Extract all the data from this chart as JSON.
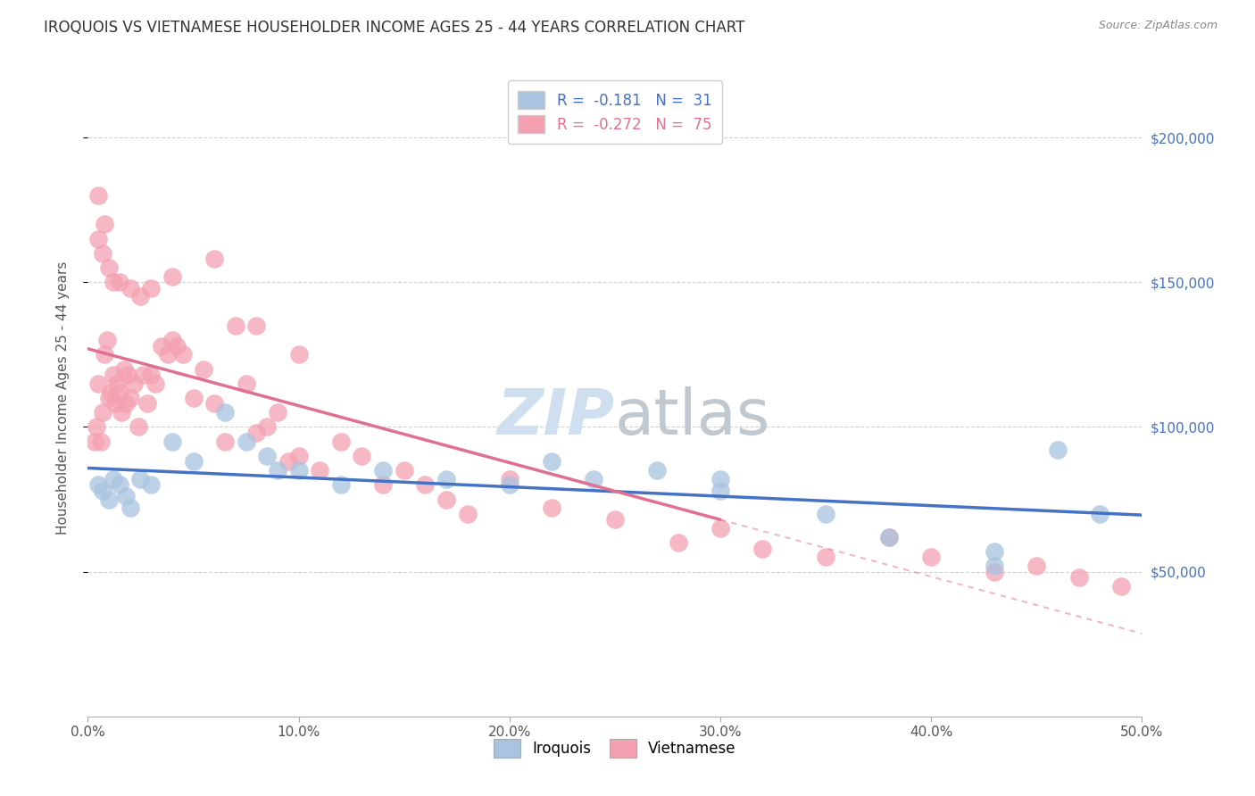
{
  "title": "IROQUOIS VS VIETNAMESE HOUSEHOLDER INCOME AGES 25 - 44 YEARS CORRELATION CHART",
  "source": "Source: ZipAtlas.com",
  "ylabel": "Householder Income Ages 25 - 44 years",
  "xlabel_ticks": [
    "0.0%",
    "10.0%",
    "20.0%",
    "30.0%",
    "40.0%",
    "50.0%"
  ],
  "xlabel_vals": [
    0.0,
    0.1,
    0.2,
    0.3,
    0.4,
    0.5
  ],
  "ylabel_ticks": [
    "$50,000",
    "$100,000",
    "$150,000",
    "$200,000"
  ],
  "ylabel_vals": [
    50000,
    100000,
    150000,
    200000
  ],
  "xlim": [
    0.0,
    0.5
  ],
  "ylim": [
    0,
    220000
  ],
  "iroquois_r": -0.181,
  "iroquois_n": 31,
  "vietnamese_r": -0.272,
  "vietnamese_n": 75,
  "color_iroquois": "#a8c4e0",
  "color_vietnamese": "#f4a0b0",
  "color_iroquois_line": "#4472c4",
  "color_vietnamese_line": "#e07090",
  "color_watermark": "#d0dff0",
  "iroquois_x": [
    0.005,
    0.007,
    0.01,
    0.012,
    0.015,
    0.018,
    0.02,
    0.025,
    0.03,
    0.04,
    0.05,
    0.065,
    0.075,
    0.085,
    0.09,
    0.1,
    0.12,
    0.14,
    0.17,
    0.2,
    0.22,
    0.24,
    0.27,
    0.3,
    0.3,
    0.35,
    0.38,
    0.43,
    0.43,
    0.46,
    0.48
  ],
  "iroquois_y": [
    80000,
    78000,
    75000,
    82000,
    80000,
    76000,
    72000,
    82000,
    80000,
    95000,
    88000,
    105000,
    95000,
    90000,
    85000,
    85000,
    80000,
    85000,
    82000,
    80000,
    88000,
    82000,
    85000,
    82000,
    78000,
    70000,
    62000,
    57000,
    52000,
    92000,
    70000
  ],
  "vietnamese_x": [
    0.003,
    0.004,
    0.005,
    0.006,
    0.007,
    0.008,
    0.009,
    0.01,
    0.011,
    0.012,
    0.013,
    0.014,
    0.015,
    0.016,
    0.017,
    0.018,
    0.019,
    0.02,
    0.022,
    0.024,
    0.026,
    0.028,
    0.03,
    0.032,
    0.035,
    0.038,
    0.04,
    0.042,
    0.045,
    0.05,
    0.055,
    0.06,
    0.065,
    0.07,
    0.075,
    0.08,
    0.085,
    0.09,
    0.095,
    0.1,
    0.11,
    0.12,
    0.13,
    0.14,
    0.15,
    0.16,
    0.17,
    0.18,
    0.2,
    0.22,
    0.25,
    0.28,
    0.3,
    0.32,
    0.35,
    0.38,
    0.4,
    0.43,
    0.45,
    0.47,
    0.49,
    0.005,
    0.005,
    0.007,
    0.008,
    0.01,
    0.012,
    0.015,
    0.02,
    0.025,
    0.03,
    0.04,
    0.06,
    0.08,
    0.1
  ],
  "vietnamese_y": [
    95000,
    100000,
    115000,
    95000,
    105000,
    125000,
    130000,
    110000,
    112000,
    118000,
    108000,
    115000,
    112000,
    105000,
    120000,
    108000,
    118000,
    110000,
    115000,
    100000,
    118000,
    108000,
    118000,
    115000,
    128000,
    125000,
    130000,
    128000,
    125000,
    110000,
    120000,
    108000,
    95000,
    135000,
    115000,
    98000,
    100000,
    105000,
    88000,
    90000,
    85000,
    95000,
    90000,
    80000,
    85000,
    80000,
    75000,
    70000,
    82000,
    72000,
    68000,
    60000,
    65000,
    58000,
    55000,
    62000,
    55000,
    50000,
    52000,
    48000,
    45000,
    180000,
    165000,
    160000,
    170000,
    155000,
    150000,
    150000,
    148000,
    145000,
    148000,
    152000,
    158000,
    135000,
    125000
  ]
}
